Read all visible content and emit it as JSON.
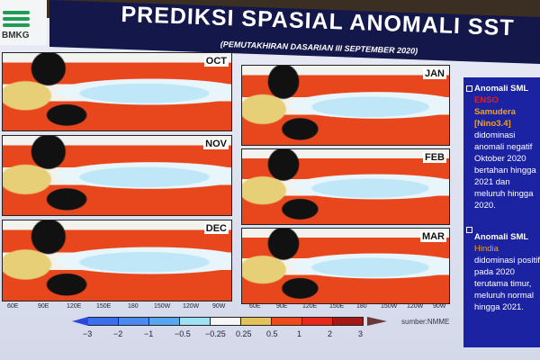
{
  "header": {
    "title": "PREDIKSI SPASIAL ANOMALI SST",
    "subtitle": "(PEMUTAKHIRAN DASARIAN III SEPTEMBER 2020)",
    "logo_text": "BMKG"
  },
  "maps": [
    {
      "month": "OCT"
    },
    {
      "month": "NOV"
    },
    {
      "month": "DEC"
    },
    {
      "month": "JAN"
    },
    {
      "month": "FEB"
    },
    {
      "month": "MAR"
    }
  ],
  "axis_left": [
    "60E",
    "90E",
    "120E",
    "150E",
    "180",
    "150W",
    "120W",
    "90W"
  ],
  "axis_right": [
    "60E",
    "90E",
    "120E",
    "150E",
    "180",
    "150W",
    "120W",
    "90W"
  ],
  "colorbar": {
    "labels": [
      "−3",
      "−2",
      "−1",
      "−0.5",
      "−0.25",
      "0.25",
      "0.5",
      "1",
      "2",
      "3"
    ],
    "colors": [
      "#3b6ff0",
      "#4a8af0",
      "#57a6f2",
      "#9fe2f8",
      "#f7f7f7",
      "#e2c25a",
      "#ef4a1a",
      "#e8281a",
      "#a51815"
    ]
  },
  "source": "sumber:NMME",
  "sidebar": {
    "item1": {
      "heading": "Anomali SML",
      "enso": "ENSO",
      "region": "Samudera",
      "nino": "[Nino3.4]",
      "body": "didominasi anomali negatif Oktober 2020 bertahan hingga 2021 dan meluruh hingga 2020."
    },
    "item2": {
      "heading": "Anomali SML",
      "region": "Hindia",
      "body": "didominasi positif pada 2020 terutama timur, meluruh normal hingga 2021."
    }
  }
}
